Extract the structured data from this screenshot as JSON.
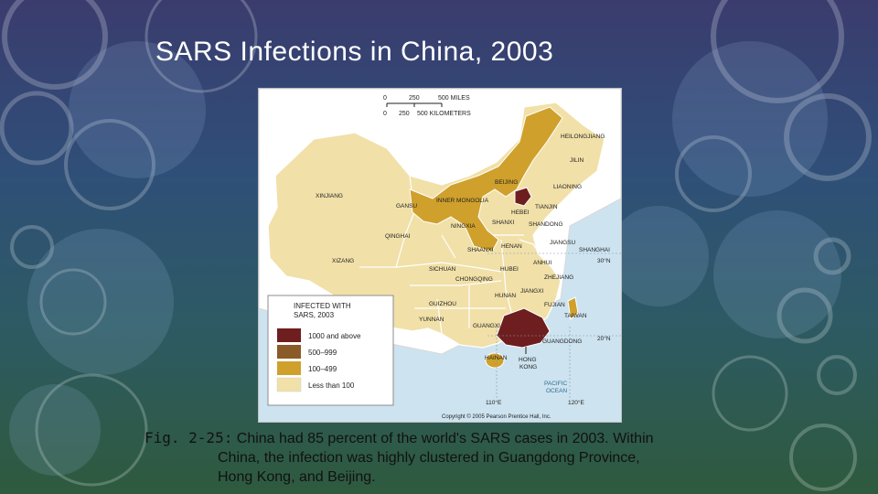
{
  "title": "SARS Infections in China, 2003",
  "scale_bar": {
    "miles_ticks": [
      "0",
      "250",
      "500 MILES"
    ],
    "km_ticks": [
      "0",
      "250",
      "500 KILOMETERS"
    ]
  },
  "legend": {
    "title_line1": "INFECTED WITH",
    "title_line2": "SARS, 2003",
    "items": [
      {
        "label": "1000 and above",
        "color": "#6e1e1e"
      },
      {
        "label": "500–999",
        "color": "#8a5a28"
      },
      {
        "label": "100–499",
        "color": "#cfa02c"
      },
      {
        "label": "Less than 100",
        "color": "#f1e0a8"
      }
    ]
  },
  "provinces": {
    "heilongjiang": "HEILONGJIANG",
    "jilin": "JILIN",
    "liaoning": "LIAONING",
    "beijing": "BEIJING",
    "tianjin": "TIANJIN",
    "inner_mongolia": "INNER MONGOLIA",
    "xinjiang": "XINJIANG",
    "gansu": "GANSU",
    "ningxia": "NINGXIA",
    "shanxi": "SHANXI",
    "hebei": "HEBEI",
    "shandong": "SHANDONG",
    "qinghai": "QINGHAI",
    "henan": "HENAN",
    "jiangsu": "JIANGSU",
    "shanghai": "SHANGHAI",
    "shaanxi": "SHAANXI",
    "anhui": "ANHUI",
    "xizang": "XIZANG",
    "sichuan": "SICHUAN",
    "chongqing": "CHONGQING",
    "hubei": "HUBEI",
    "zhejiang": "ZHEJIANG",
    "jiangxi": "JIANGXI",
    "hunan": "HUNAN",
    "guizhou": "GUIZHOU",
    "fujian": "FUJIAN",
    "taiwan": "TAIWAN",
    "yunnan": "YUNNAN",
    "guangxi": "GUANGXI",
    "guangdong": "GUANGDONG",
    "hong_kong_line1": "HONG",
    "hong_kong_line2": "KONG",
    "hainan": "HAINAN"
  },
  "water_labels": {
    "ocean_line1": "PACIFIC",
    "ocean_line2": "OCEAN"
  },
  "coordinates": {
    "lat30": "30°N",
    "lat20": "20°N",
    "lon110": "110°E",
    "lon120": "120°E"
  },
  "copyright": "Copyright © 2005 Pearson Prentice Hall, Inc.",
  "caption": {
    "line1_fig": "Fig. 2-25:",
    "line1_text": " China had 85 percent of the world's SARS cases in 2003. Within",
    "line2": "China, the infection was highly clustered in Guangdong Province,",
    "line3": "Hong Kong, and Beijing."
  },
  "colors": {
    "water": "#cde3ef",
    "neighbor_land": "#ffffff",
    "less_than_100": "#f1e0a8",
    "100_499": "#cfa02c",
    "500_999": "#8a5a28",
    "1000_plus": "#6e1e1e"
  }
}
